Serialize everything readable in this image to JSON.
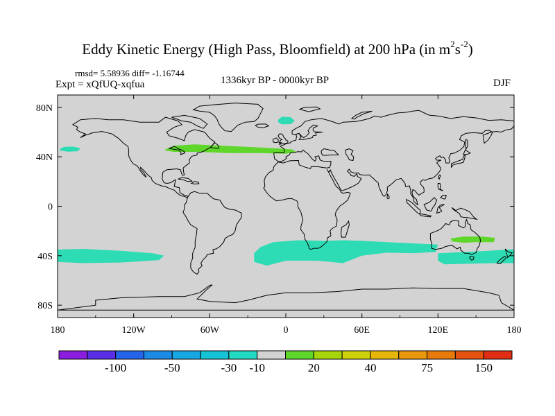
{
  "figure": {
    "title_main": "Eddy Kinetic Energy (High Pass, Bloomfield) at 200 hPa (in m",
    "title_sup1": "2",
    "title_mid": "s",
    "title_sup2": "-2",
    "title_end": ")",
    "stats": "rmsd= 5.58936 diff= -1.16744",
    "experiment": "Expt = xQfUQ-xqfua",
    "period": "1336kyr BP - 0000kyr BP",
    "season": "DJF"
  },
  "colors": {
    "background": "#d3d3d3",
    "positive_field": "#5fd62a",
    "negative_field": "#2ddcb4",
    "coast": "#000000"
  },
  "chart_data": {
    "type": "filled-contour-map",
    "variable": "Eddy kinetic energy difference",
    "units": "m2 s-2",
    "x_axis": {
      "ticks": [
        "180",
        "120W",
        "60W",
        "0",
        "60E",
        "120E",
        "180"
      ],
      "range": [
        -180,
        180
      ]
    },
    "y_axis": {
      "ticks": [
        "80N",
        "40N",
        "0",
        "40S",
        "80S"
      ],
      "range": [
        -90,
        90
      ]
    },
    "colorbar": {
      "labels": [
        "-100",
        "-50",
        "-30",
        "-10",
        "20",
        "40",
        "75",
        "150"
      ],
      "colors": [
        "#8a1de0",
        "#5a2ee6",
        "#2364e8",
        "#1b8be5",
        "#17a7e2",
        "#15c2d6",
        "#22d9c2",
        "#d3d3d3",
        "#5fd62a",
        "#a6d60a",
        "#cdd20a",
        "#e6b70a",
        "#e8980a",
        "#e67a0a",
        "#e6520f",
        "#e02d14"
      ]
    },
    "regions": [
      {
        "name": "north-atlantic-storm-track",
        "sign": "positive",
        "lon_range": [
          -95,
          8
        ],
        "lat_range": [
          42,
          50
        ]
      },
      {
        "name": "australia-band",
        "sign": "positive",
        "lon_range": [
          130,
          165
        ],
        "lat_range": [
          -30,
          -25
        ]
      },
      {
        "name": "north-pacific-patch",
        "sign": "negative",
        "lon_range": [
          -178,
          -162
        ],
        "lat_range": [
          44,
          48
        ]
      },
      {
        "name": "greenland-sea-patch",
        "sign": "negative",
        "lon_range": [
          -6,
          7
        ],
        "lat_range": [
          66,
          72
        ]
      },
      {
        "name": "south-pacific-band",
        "sign": "negative",
        "lon_range": [
          -180,
          -95
        ],
        "lat_range": [
          -46,
          -34
        ]
      },
      {
        "name": "south-atlantic-indian-band",
        "sign": "negative",
        "lon_range": [
          -25,
          120
        ],
        "lat_range": [
          -50,
          -28
        ]
      },
      {
        "name": "southwest-pacific-band",
        "sign": "negative",
        "lon_range": [
          120,
          180
        ],
        "lat_range": [
          -48,
          -35
        ]
      }
    ]
  }
}
